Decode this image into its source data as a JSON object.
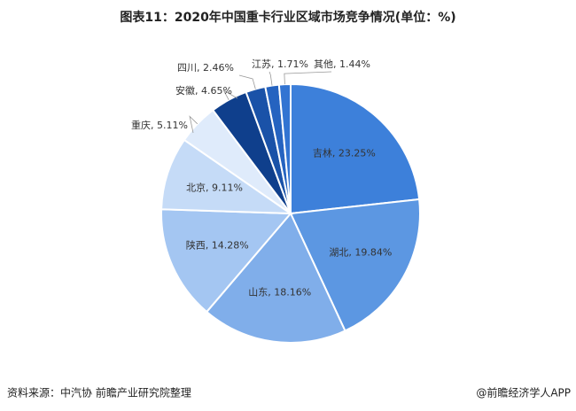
{
  "chart_data": {
    "type": "pie",
    "title": "图表11：2020年中国重卡行业区域市场竞争情况(单位：%)",
    "values": [
      23.25,
      19.84,
      18.16,
      14.28,
      9.11,
      5.11,
      4.65,
      2.46,
      1.71,
      1.44
    ],
    "value_labels": [
      "吉林, 23.25%",
      "湖北, 19.84%",
      "山东, 18.16%",
      "陕西, 14.28%",
      "北京, 9.11%",
      "重庆, 5.11%",
      "安徽, 4.65%",
      "四川, 2.46%",
      "江苏, 1.71%",
      "其他, 1.44%"
    ],
    "colors": [
      "#3d80da",
      "#5c97e2",
      "#80aeea",
      "#a4c6f2",
      "#c5dbf7",
      "#dfebfb",
      "#0f3f8c",
      "#1a52a8",
      "#2563c0",
      "#3274d2"
    ],
    "source": "资料来源：中汽协 前瞻产业研究院整理",
    "credit": "@前瞻经济学人APP"
  }
}
